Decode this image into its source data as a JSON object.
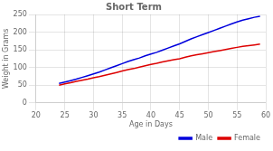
{
  "chart_data": {
    "type": "line",
    "title": "Short Term",
    "xlabel": "Age in Days",
    "ylabel": "Weight in Grams",
    "x": [
      24,
      25,
      26,
      27,
      28,
      29,
      30,
      31,
      32,
      33,
      34,
      35,
      36,
      37,
      38,
      39,
      40,
      41,
      42,
      43,
      44,
      45,
      46,
      47,
      48,
      49,
      50,
      51,
      52,
      53,
      54,
      55,
      56,
      57,
      58,
      59
    ],
    "series": [
      {
        "name": "Male",
        "color": "#0000dd",
        "values": [
          55,
          59,
          63,
          67,
          72,
          77,
          82,
          87,
          93,
          99,
          105,
          111,
          117,
          122,
          127,
          133,
          138,
          143,
          149,
          155,
          161,
          167,
          174,
          181,
          187,
          193,
          199,
          205,
          211,
          217,
          223,
          229,
          234,
          238,
          242,
          245
        ]
      },
      {
        "name": "Female",
        "color": "#dd0000",
        "values": [
          50,
          54,
          57,
          61,
          64,
          67,
          71,
          74,
          78,
          82,
          86,
          90,
          94,
          97,
          101,
          105,
          109,
          112,
          116,
          119,
          122,
          125,
          129,
          133,
          136,
          139,
          142,
          145,
          148,
          151,
          154,
          157,
          160,
          162,
          164,
          166
        ]
      }
    ],
    "xlim": [
      20,
      60
    ],
    "ylim": [
      0,
      250
    ],
    "xticks": [
      20,
      25,
      30,
      35,
      40,
      45,
      50,
      55,
      60
    ],
    "yticks": [
      0,
      50,
      100,
      150,
      200,
      250
    ],
    "grid": true,
    "legend": "lower right"
  }
}
